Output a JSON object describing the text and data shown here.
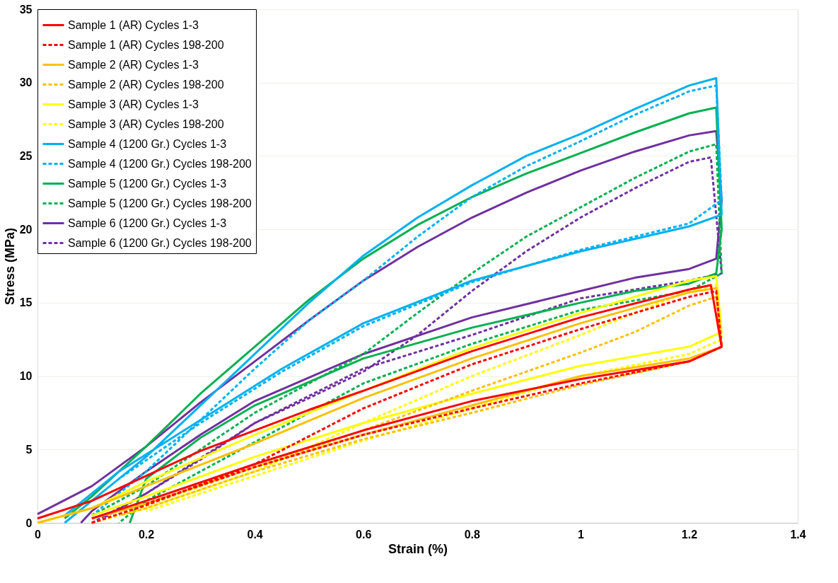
{
  "chart_data": {
    "type": "line",
    "xlabel": "Strain (%)",
    "ylabel": "Stress (MPa)",
    "xlim": [
      0,
      1.4
    ],
    "xticks": [
      0,
      0.2,
      0.4,
      0.6,
      0.8,
      1,
      1.2,
      1.4
    ],
    "ylim": [
      0,
      35
    ],
    "yticks": [
      0,
      5,
      10,
      15,
      20,
      25,
      30,
      35
    ],
    "grid": "y",
    "legend": "top left",
    "marker": "none",
    "series": [
      {
        "name": "Sample 1 (AR) Cycles 1-3",
        "color": "#ff0000",
        "line_style": "solid",
        "x": [
          0,
          0.1,
          0.2,
          0.3,
          0.4,
          0.5,
          0.6,
          0.8,
          1.0,
          1.2,
          1.24,
          1.26,
          1.2,
          1.0,
          0.8,
          0.6,
          0.4,
          0.2,
          0.1
        ],
        "values": [
          0.3,
          1.5,
          3.2,
          4.9,
          6.3,
          7.7,
          9,
          11.7,
          14,
          15.9,
          16.2,
          12,
          11,
          9.8,
          8.3,
          6.3,
          4,
          1.5,
          0.3
        ]
      },
      {
        "name": "Sample 1 (AR) Cycles 198-200",
        "color": "#ff0000",
        "line_style": "dashed",
        "x": [
          0.1,
          0.2,
          0.4,
          0.6,
          0.8,
          1.0,
          1.2,
          1.25,
          1.26,
          1.2,
          1.0,
          0.8,
          0.6,
          0.4,
          0.2
        ],
        "values": [
          0,
          1.2,
          4,
          7.8,
          10.8,
          13.2,
          15.4,
          15.8,
          12,
          11,
          9.5,
          7.8,
          6,
          3.8,
          1.3
        ]
      },
      {
        "name": "Sample 2 (AR) Cycles 1-3",
        "color": "#ffc000",
        "line_style": "solid",
        "x": [
          0,
          0.1,
          0.2,
          0.4,
          0.6,
          0.8,
          1.0,
          1.2,
          1.25,
          1.26,
          1.2,
          1.0,
          0.8,
          0.6,
          0.4,
          0.2,
          0.1
        ],
        "values": [
          0,
          1,
          2.5,
          5.4,
          8.5,
          11.2,
          13.6,
          15.7,
          16,
          12,
          11.2,
          10,
          8,
          6,
          3.8,
          1.3,
          0.3
        ]
      },
      {
        "name": "Sample 2 (AR) Cycles 198-200",
        "color": "#ffc000",
        "line_style": "dashed",
        "x": [
          0.1,
          0.2,
          0.4,
          0.6,
          0.8,
          1.0,
          1.1,
          1.2,
          1.25,
          1.26,
          1.2,
          1.0,
          0.8,
          0.6,
          0.4,
          0.2,
          0.15
        ],
        "values": [
          0,
          1.2,
          3.8,
          6.3,
          9,
          11.6,
          13,
          14.8,
          15.4,
          12,
          11,
          9.4,
          7.5,
          5.7,
          3.5,
          1,
          0.5
        ]
      },
      {
        "name": "Sample 3 (AR) Cycles 1-3",
        "color": "#ffff00",
        "line_style": "solid",
        "x": [
          0,
          0.1,
          0.2,
          0.4,
          0.6,
          0.8,
          1.0,
          1.2,
          1.25,
          1.26,
          1.2,
          1.0,
          0.8,
          0.6,
          0.4,
          0.2,
          0.1
        ],
        "values": [
          0,
          1,
          2.8,
          6,
          9,
          11.9,
          14.3,
          16.5,
          16.8,
          13,
          12,
          10.7,
          8.8,
          6.8,
          4.5,
          1.8,
          0.5
        ]
      },
      {
        "name": "Sample 3 (AR) Cycles 198-200",
        "color": "#ffff00",
        "line_style": "dashed",
        "x": [
          0.1,
          0.2,
          0.4,
          0.6,
          0.8,
          1.0,
          1.2,
          1.25,
          1.26,
          1.2,
          1.0,
          0.8,
          0.6,
          0.4,
          0.2
        ],
        "values": [
          0,
          1,
          3.5,
          6.8,
          10,
          12.8,
          15.8,
          16.2,
          12.5,
          11.5,
          10,
          7.8,
          5.6,
          3.2,
          0.8
        ]
      },
      {
        "name": "Sample 4 (1200 Gr.) Cycles 1-3",
        "color": "#00b0f0",
        "line_style": "solid",
        "x": [
          0.05,
          0.1,
          0.2,
          0.3,
          0.4,
          0.5,
          0.6,
          0.7,
          0.8,
          0.9,
          1.0,
          1.1,
          1.2,
          1.25,
          1.26,
          1.2,
          1.0,
          0.8,
          0.6,
          0.45,
          0.3,
          0.15,
          0.05
        ],
        "values": [
          0,
          1.5,
          4.5,
          8,
          11.5,
          15,
          18.2,
          20.8,
          23,
          25,
          26.5,
          28.2,
          29.8,
          30.3,
          21,
          20.2,
          18.5,
          16.5,
          13.6,
          10.5,
          7,
          3.5,
          0.5
        ]
      },
      {
        "name": "Sample 4 (1200 Gr.) Cycles 198-200",
        "color": "#00b0f0",
        "line_style": "dashed",
        "x": [
          0.1,
          0.2,
          0.3,
          0.4,
          0.5,
          0.6,
          0.7,
          0.8,
          0.9,
          1.0,
          1.1,
          1.2,
          1.25,
          1.26,
          1.2,
          1.0,
          0.8,
          0.6,
          0.45,
          0.3,
          0.15
        ],
        "values": [
          0.5,
          3.5,
          7,
          10.5,
          13.8,
          16.5,
          19.5,
          22.2,
          24.3,
          26,
          27.8,
          29.4,
          29.8,
          22,
          20.4,
          18.6,
          16.4,
          13.4,
          10.3,
          6.8,
          3
        ]
      },
      {
        "name": "Sample 5 (1200 Gr.) Cycles 1-3",
        "color": "#00b050",
        "line_style": "solid",
        "x": [
          0.05,
          0.1,
          0.2,
          0.3,
          0.4,
          0.5,
          0.6,
          0.7,
          0.8,
          0.9,
          1.0,
          1.1,
          1.2,
          1.25,
          1.26,
          1.25,
          1.2,
          1.1,
          1.0,
          0.8,
          0.6,
          0.4,
          0.3,
          0.2,
          0.17
        ],
        "values": [
          0.3,
          1.8,
          5.2,
          8.8,
          12,
          15.2,
          18,
          20.3,
          22.2,
          23.8,
          25.2,
          26.6,
          27.9,
          28.3,
          20,
          17,
          16.3,
          15.8,
          15,
          13.3,
          11.2,
          8,
          5.8,
          3,
          0
        ]
      },
      {
        "name": "Sample 5 (1200 Gr.) Cycles 198-200",
        "color": "#00b050",
        "line_style": "dashed",
        "x": [
          0.1,
          0.2,
          0.3,
          0.4,
          0.5,
          0.6,
          0.7,
          0.8,
          0.9,
          1.0,
          1.1,
          1.2,
          1.25,
          1.26,
          1.2,
          1.0,
          0.8,
          0.6,
          0.4,
          0.2,
          0.15
        ],
        "values": [
          0.5,
          2.5,
          5,
          7.5,
          9.5,
          11.5,
          14.3,
          17,
          19.5,
          21.5,
          23.5,
          25.3,
          25.8,
          17,
          15.8,
          14.5,
          12.2,
          9.5,
          5.5,
          1.5,
          0
        ]
      },
      {
        "name": "Sample 6 (1200 Gr.) Cycles 1-3",
        "color": "#7030a0",
        "line_style": "solid",
        "x": [
          0,
          0.1,
          0.2,
          0.3,
          0.4,
          0.5,
          0.6,
          0.7,
          0.8,
          0.9,
          1.0,
          1.1,
          1.2,
          1.25,
          1.26,
          1.25,
          1.2,
          1.1,
          1.0,
          0.8,
          0.6,
          0.4,
          0.3,
          0.2,
          0.1,
          0.08
        ],
        "values": [
          0.6,
          2.5,
          5.2,
          8.2,
          11,
          13.8,
          16.5,
          18.8,
          20.8,
          22.5,
          24,
          25.3,
          26.4,
          26.7,
          22,
          18,
          17.3,
          16.7,
          15.8,
          14,
          11.5,
          8.3,
          6,
          3.5,
          0.8,
          0
        ]
      },
      {
        "name": "Sample 6 (1200 Gr.) Cycles 198-200",
        "color": "#7030a0",
        "line_style": "dashed",
        "x": [
          0.1,
          0.2,
          0.3,
          0.4,
          0.5,
          0.6,
          0.7,
          0.8,
          0.9,
          1.0,
          1.1,
          1.2,
          1.24,
          1.26,
          1.2,
          1.0,
          0.8,
          0.6,
          0.4,
          0.2,
          0.12
        ],
        "values": [
          0,
          2,
          4.3,
          6.8,
          8.5,
          10.3,
          12.8,
          15.8,
          18.5,
          20.8,
          22.8,
          24.6,
          24.9,
          17,
          16.5,
          15.3,
          12.8,
          10.5,
          6.8,
          2,
          0.3
        ]
      }
    ]
  }
}
